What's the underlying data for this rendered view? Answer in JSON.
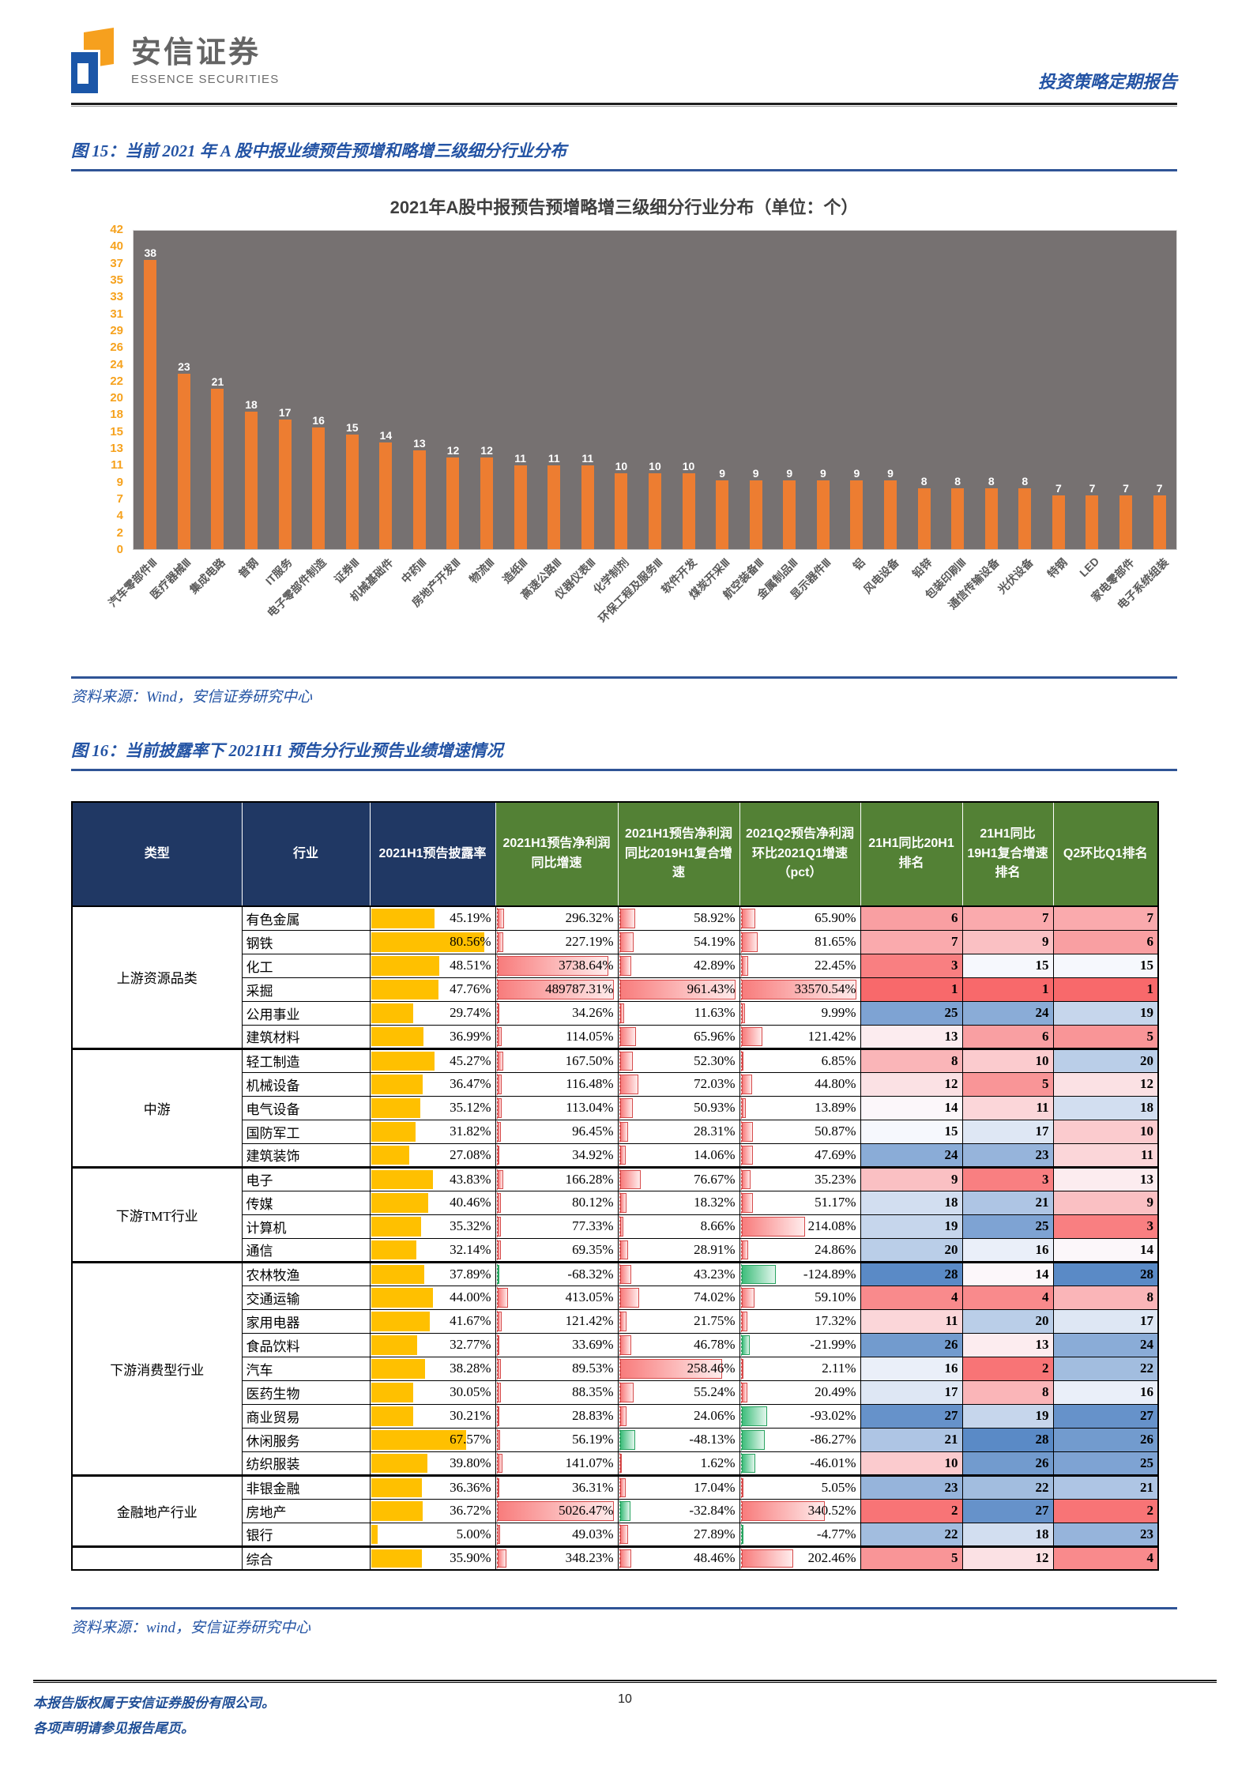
{
  "header": {
    "brand_cn": "安信证券",
    "brand_en": "ESSENCE SECURITIES",
    "report_type": "投资策略定期报告"
  },
  "figure15": {
    "caption": "图 15：当前 2021 年 A 股中报业绩预告预增和略增三级细分行业分布",
    "source": "资料来源：Wind，安信证券研究中心"
  },
  "chart_data": {
    "type": "bar",
    "title": "2021年A股中报预告预增略增三级细分行业分布（单位：个）",
    "categories": [
      "汽车零部件Ⅲ",
      "医疗器械Ⅲ",
      "集成电路",
      "普钢",
      "IT服务",
      "电子零部件制造",
      "证券Ⅲ",
      "机械基础件",
      "中药Ⅲ",
      "房地产开发Ⅲ",
      "物流Ⅲ",
      "造纸Ⅲ",
      "高速公路Ⅲ",
      "仪器仪表Ⅲ",
      "化学制剂",
      "环保工程及服务Ⅲ",
      "软件开发",
      "煤炭开采Ⅲ",
      "航空装备Ⅲ",
      "金属制品Ⅲ",
      "显示器件Ⅲ",
      "铝",
      "风电设备",
      "铅锌",
      "包装印刷Ⅲ",
      "通信传输设备",
      "光伏设备",
      "特钢",
      "LED",
      "家电零部件",
      "电子系统组装"
    ],
    "values": [
      38,
      23,
      21,
      18,
      17,
      16,
      15,
      14,
      13,
      12,
      12,
      11,
      11,
      11,
      10,
      10,
      10,
      9,
      9,
      9,
      9,
      9,
      9,
      8,
      8,
      8,
      8,
      7,
      7,
      7,
      7
    ],
    "y_ticks": [
      42,
      40,
      37,
      35,
      33,
      31,
      29,
      26,
      24,
      22,
      20,
      18,
      15,
      13,
      11,
      9,
      7,
      4,
      2,
      0
    ],
    "ylim": [
      0,
      42
    ],
    "xlabel": "",
    "ylabel": "",
    "legend": "none",
    "grid": false,
    "bar_color": "#ED7D31",
    "plot_bg": "#767171"
  },
  "figure16": {
    "caption": "图 16：当前披露率下 2021H1 预告分行业预告业绩增速情况",
    "source": "资料来源：wind，安信证券研究中心",
    "table": {
      "headers": [
        "类型",
        "行业",
        "2021H1预告披露率",
        "2021H1预告净利润同比增速",
        "2021H1预告净利润同比2019H1复合增速",
        "2021Q2预告净利润环比2021Q1增速（pct）",
        "21H1同比20H1排名",
        "21H1同比19H1复合增速排名",
        "Q2环比Q1排名"
      ],
      "rank_scale": {
        "min_color": "#F8696B",
        "mid_color": "#FCFCFF",
        "max_color": "#5A8AC6",
        "min_rank": 1,
        "mid_rank": 14.5,
        "max_rank": 28
      },
      "disclosure_bar_color": "#FFC000",
      "groups": [
        {
          "type": "上游资源品类",
          "rows": [
            {
              "industry": "有色金属",
              "disclosure": "45.19%",
              "yoy": "296.32%",
              "cagr": "58.92%",
              "qoq": "65.90%",
              "r1": 6,
              "r2": 7,
              "r3": 7,
              "bars": [
                0.06,
                0.13,
                0.12
              ]
            },
            {
              "industry": "钢铁",
              "disclosure": "80.56%",
              "yoy": "227.19%",
              "cagr": "54.19%",
              "qoq": "81.65%",
              "r1": 7,
              "r2": 9,
              "r3": 6,
              "bars": [
                0.05,
                0.12,
                0.14
              ]
            },
            {
              "industry": "化工",
              "disclosure": "48.51%",
              "yoy": "3738.64%",
              "cagr": "42.89%",
              "qoq": "22.45%",
              "r1": 3,
              "r2": 15,
              "r3": 15,
              "bars": [
                0.95,
                0.1,
                0.06
              ]
            },
            {
              "industry": "采掘",
              "disclosure": "47.76%",
              "yoy": "489787.31%",
              "cagr": "961.43%",
              "qoq": "33570.54%",
              "r1": 1,
              "r2": 1,
              "r3": 1,
              "bars": [
                1,
                1,
                1
              ]
            },
            {
              "industry": "公用事业",
              "disclosure": "29.74%",
              "yoy": "34.26%",
              "cagr": "11.63%",
              "qoq": "9.99%",
              "r1": 25,
              "r2": 24,
              "r3": 19,
              "bars": [
                0.02,
                0.04,
                0.03
              ]
            },
            {
              "industry": "建筑材料",
              "disclosure": "36.99%",
              "yoy": "114.05%",
              "cagr": "65.96%",
              "qoq": "121.42%",
              "r1": 13,
              "r2": 6,
              "r3": 5,
              "bars": [
                0.04,
                0.14,
                0.18
              ]
            }
          ]
        },
        {
          "type": "中游",
          "rows": [
            {
              "industry": "轻工制造",
              "disclosure": "45.27%",
              "yoy": "167.50%",
              "cagr": "52.30%",
              "qoq": "6.85%",
              "r1": 8,
              "r2": 10,
              "r3": 20,
              "bars": [
                0.05,
                0.11,
                0.02
              ]
            },
            {
              "industry": "机械设备",
              "disclosure": "36.47%",
              "yoy": "116.48%",
              "cagr": "72.03%",
              "qoq": "44.80%",
              "r1": 12,
              "r2": 5,
              "r3": 12,
              "bars": [
                0.04,
                0.16,
                0.09
              ]
            },
            {
              "industry": "电气设备",
              "disclosure": "35.12%",
              "yoy": "113.04%",
              "cagr": "50.93%",
              "qoq": "13.89%",
              "r1": 14,
              "r2": 11,
              "r3": 18,
              "bars": [
                0.04,
                0.11,
                0.04
              ]
            },
            {
              "industry": "国防军工",
              "disclosure": "31.82%",
              "yoy": "96.45%",
              "cagr": "28.31%",
              "qoq": "50.87%",
              "r1": 15,
              "r2": 17,
              "r3": 10,
              "bars": [
                0.03,
                0.07,
                0.1
              ]
            },
            {
              "industry": "建筑装饰",
              "disclosure": "27.08%",
              "yoy": "34.92%",
              "cagr": "14.06%",
              "qoq": "47.69%",
              "r1": 24,
              "r2": 23,
              "r3": 11,
              "bars": [
                0.02,
                0.05,
                0.1
              ]
            }
          ]
        },
        {
          "type": "下游TMT行业",
          "rows": [
            {
              "industry": "电子",
              "disclosure": "43.83%",
              "yoy": "166.28%",
              "cagr": "76.67%",
              "qoq": "35.23%",
              "r1": 9,
              "r2": 3,
              "r3": 13,
              "bars": [
                0.05,
                0.18,
                0.08
              ]
            },
            {
              "industry": "传媒",
              "disclosure": "40.46%",
              "yoy": "80.12%",
              "cagr": "18.32%",
              "qoq": "51.17%",
              "r1": 18,
              "r2": 21,
              "r3": 9,
              "bars": [
                0.03,
                0.06,
                0.1
              ]
            },
            {
              "industry": "计算机",
              "disclosure": "35.32%",
              "yoy": "77.33%",
              "cagr": "8.66%",
              "qoq": "214.08%",
              "r1": 19,
              "r2": 25,
              "r3": 3,
              "bars": [
                0.03,
                0.03,
                0.55
              ]
            },
            {
              "industry": "通信",
              "disclosure": "32.14%",
              "yoy": "69.35%",
              "cagr": "28.91%",
              "qoq": "24.86%",
              "r1": 20,
              "r2": 16,
              "r3": 14,
              "bars": [
                0.03,
                0.07,
                0.06
              ]
            }
          ]
        },
        {
          "type": "下游消费型行业",
          "rows": [
            {
              "industry": "农林牧渔",
              "disclosure": "37.89%",
              "yoy": "-68.32%",
              "cagr": "43.23%",
              "qoq": "-124.89%",
              "r1": 28,
              "r2": 14,
              "r3": 28,
              "bars": [
                0.02,
                0.1,
                0.3
              ]
            },
            {
              "industry": "交通运输",
              "disclosure": "44.00%",
              "yoy": "413.05%",
              "cagr": "74.02%",
              "qoq": "59.10%",
              "r1": 4,
              "r2": 4,
              "r3": 8,
              "bars": [
                0.09,
                0.17,
                0.11
              ]
            },
            {
              "industry": "家用电器",
              "disclosure": "41.67%",
              "yoy": "121.42%",
              "cagr": "21.75%",
              "qoq": "17.32%",
              "r1": 11,
              "r2": 20,
              "r3": 17,
              "bars": [
                0.04,
                0.06,
                0.05
              ]
            },
            {
              "industry": "食品饮料",
              "disclosure": "32.77%",
              "yoy": "33.69%",
              "cagr": "46.78%",
              "qoq": "-21.99%",
              "r1": 26,
              "r2": 13,
              "r3": 24,
              "bars": [
                0.02,
                0.1,
                0.07
              ]
            },
            {
              "industry": "汽车",
              "disclosure": "38.28%",
              "yoy": "89.53%",
              "cagr": "258.46%",
              "qoq": "2.11%",
              "r1": 16,
              "r2": 2,
              "r3": 22,
              "bars": [
                0.03,
                0.88,
                0.01
              ]
            },
            {
              "industry": "医药生物",
              "disclosure": "30.05%",
              "yoy": "88.35%",
              "cagr": "55.24%",
              "qoq": "20.49%",
              "r1": 17,
              "r2": 8,
              "r3": 16,
              "bars": [
                0.03,
                0.12,
                0.05
              ]
            },
            {
              "industry": "商业贸易",
              "disclosure": "30.21%",
              "yoy": "28.83%",
              "cagr": "24.06%",
              "qoq": "-93.02%",
              "r1": 27,
              "r2": 19,
              "r3": 27,
              "bars": [
                0.02,
                0.06,
                0.22
              ]
            },
            {
              "industry": "休闲服务",
              "disclosure": "67.57%",
              "yoy": "56.19%",
              "cagr": "-48.13%",
              "qoq": "-86.27%",
              "r1": 21,
              "r2": 28,
              "r3": 26,
              "bars": [
                0.025,
                0.13,
                0.2
              ]
            },
            {
              "industry": "纺织服装",
              "disclosure": "39.80%",
              "yoy": "141.07%",
              "cagr": "1.62%",
              "qoq": "-46.01%",
              "r1": 10,
              "r2": 26,
              "r3": 25,
              "bars": [
                0.045,
                0.01,
                0.12
              ]
            }
          ]
        },
        {
          "type": "金融地产行业",
          "rows": [
            {
              "industry": "非银金融",
              "disclosure": "36.36%",
              "yoy": "36.31%",
              "cagr": "17.04%",
              "qoq": "5.05%",
              "r1": 23,
              "r2": 22,
              "r3": 21,
              "bars": [
                0.02,
                0.05,
                0.015
              ]
            },
            {
              "industry": "房地产",
              "disclosure": "36.72%",
              "yoy": "5026.47%",
              "cagr": "-32.84%",
              "qoq": "340.52%",
              "r1": 2,
              "r2": 27,
              "r3": 2,
              "bars": [
                1,
                0.09,
                0.72
              ]
            },
            {
              "industry": "银行",
              "disclosure": "5.00%",
              "yoy": "49.03%",
              "cagr": "27.89%",
              "qoq": "-4.77%",
              "r1": 22,
              "r2": 18,
              "r3": 23,
              "bars": [
                0.025,
                0.07,
                0.015
              ]
            }
          ]
        },
        {
          "type": "",
          "rows": [
            {
              "industry": "综合",
              "disclosure": "35.90%",
              "yoy": "348.23%",
              "cagr": "48.46%",
              "qoq": "202.46%",
              "r1": 5,
              "r2": 12,
              "r3": 4,
              "bars": [
                0.08,
                0.1,
                0.45
              ]
            }
          ]
        }
      ]
    }
  },
  "footer": {
    "line1": "本报告版权属于安信证券股份有限公司。",
    "line2": "各项声明请参见报告尾页。",
    "page": "10"
  }
}
